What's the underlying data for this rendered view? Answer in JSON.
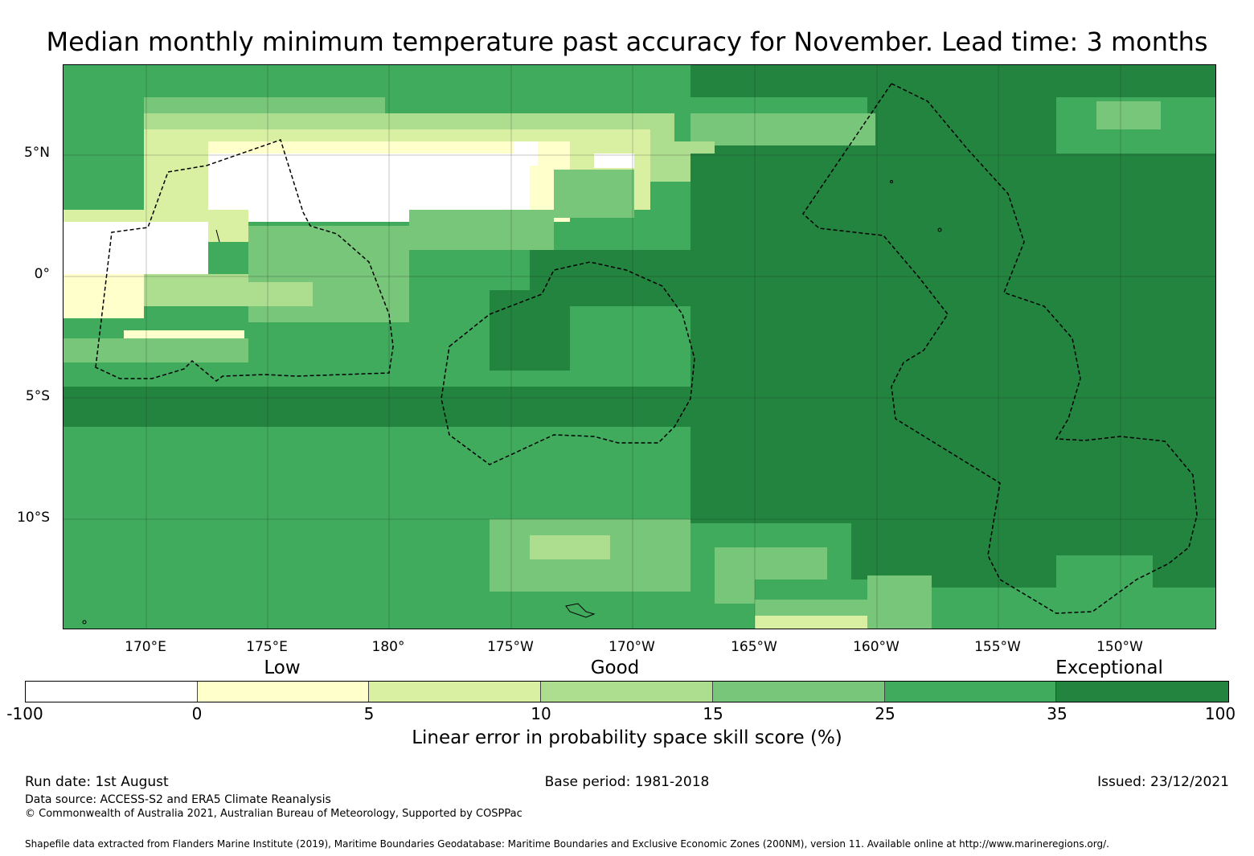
{
  "title": "Median monthly minimum temperature past accuracy for November. Lead time: 3 months",
  "map": {
    "lat_labels": [
      "5°N",
      "0°",
      "5°S",
      "10°S"
    ],
    "lon_labels": [
      "170°E",
      "175°E",
      "180°",
      "175°W",
      "170°W",
      "165°W",
      "160°W",
      "155°W",
      "150°W"
    ],
    "colors": {
      "below_0": "#ffffff",
      "0_5": "#ffffcc",
      "5_10": "#d9f0a3",
      "10_15": "#addd8e",
      "15_25": "#78c679",
      "25_35": "#41ab5d",
      "35_100": "#23843f"
    }
  },
  "legend": {
    "categories": [
      "Low",
      "Good",
      "Exceptional"
    ],
    "ticks": [
      "-100",
      "0",
      "5",
      "10",
      "15",
      "25",
      "35",
      "100"
    ],
    "colors": [
      "#ffffff",
      "#ffffcc",
      "#d9f0a3",
      "#addd8e",
      "#78c679",
      "#41ab5d",
      "#23843f"
    ],
    "label": "Linear error in probability space skill score (%)"
  },
  "footer": {
    "run_date": "Run date: 1st August",
    "base_period": "Base period: 1981-2018",
    "issued": "Issued: 23/12/2021",
    "data_source": "Data source: ACCESS-S2 and ERA5 Climate Reanalysis",
    "copyright": "© Commonwealth of Australia 2021, Australian Bureau of Meteorology, Supported by COSPPac",
    "shapefile": "Shapefile data extracted from Flanders Marine Institute (2019), Maritime Boundaries Geodatabase: Maritime Boundaries and Exclusive Economic Zones (200NM), version 11. Available online at http://www.marineregions.org/."
  }
}
